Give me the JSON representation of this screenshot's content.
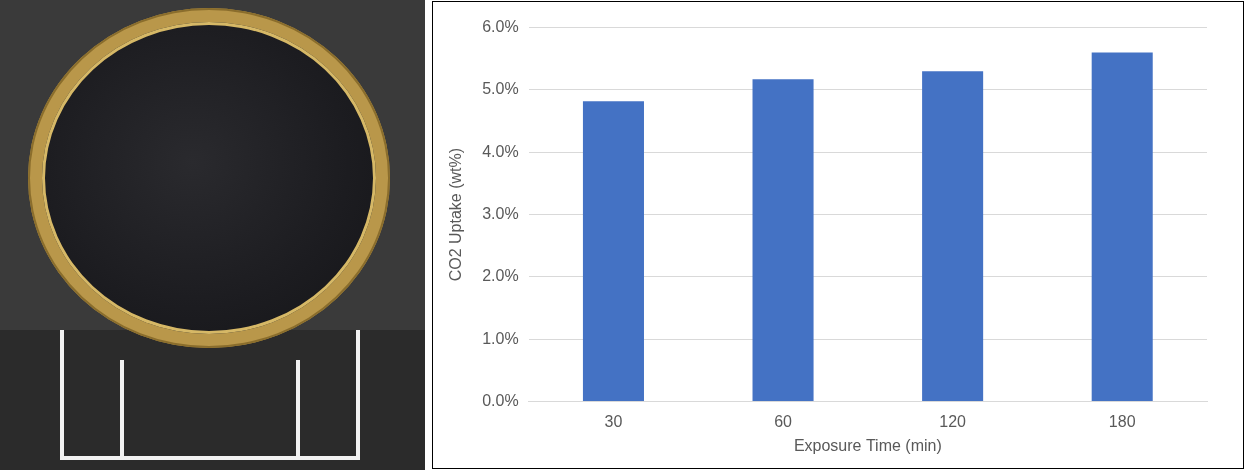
{
  "chart_data": {
    "type": "bar",
    "categories": [
      "30",
      "60",
      "120",
      "180"
    ],
    "values": [
      4.82,
      5.17,
      5.3,
      5.6
    ],
    "color": "#4472c4",
    "xlabel": "Exposure Time (min)",
    "ylabel": "CO2 Uptake (wt%)",
    "ylim": [
      0,
      6
    ],
    "yticks": [
      {
        "value": 0,
        "label": "0.0%"
      },
      {
        "value": 1,
        "label": "1.0%"
      },
      {
        "value": 2,
        "label": "2.0%"
      },
      {
        "value": 3,
        "label": "3.0%"
      },
      {
        "value": 4,
        "label": "4.0%"
      },
      {
        "value": 5,
        "label": "5.0%"
      },
      {
        "value": 6,
        "label": "6.0%"
      }
    ],
    "grid": true
  }
}
